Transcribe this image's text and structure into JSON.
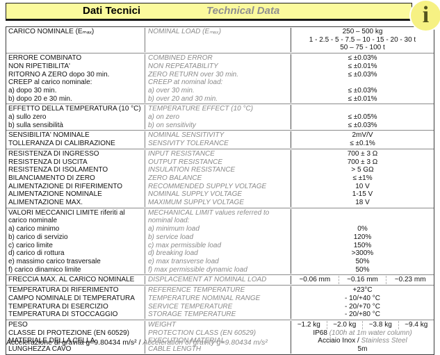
{
  "header": {
    "title_it": "Dati Tecnici",
    "title_en": "Technical Data"
  },
  "info_icon": {
    "glyph": "i"
  },
  "colors": {
    "banner_yellow": "#fbfa9d",
    "icon_yellow": "#f6f183",
    "icon_glyph": "#54541e",
    "gray_italic_text": "#8a8a8a",
    "border_dark": "#3a3a3a",
    "border_light": "#8a8a8a"
  },
  "table": {
    "groups": [
      {
        "rows": [
          {
            "it": "CARICO NOMINALE (Eₘₐₓ)",
            "en": "NOMINAL LOAD (Eₘₐₓ)",
            "val_lines": [
              "250 – 500 kg",
              "1 - 2.5 - 5 - 7.5 – 10 - 15 - 20 - 30 t",
              "50 – 75 - 100 t"
            ]
          }
        ]
      },
      {
        "rows": [
          {
            "it": "ERRORE COMBINATO",
            "en": "COMBINED ERROR",
            "val": "≤ ±0.03%"
          },
          {
            "it": "NON RIPETIBILITA'",
            "en": "NON REPEATABILITY",
            "val": "≤ ±0.01%"
          },
          {
            "it": "RITORNO A ZERO dopo 30 min.",
            "en": "ZERO RETURN over 30 min.",
            "val": "≤ ±0.03%"
          },
          {
            "it": "CREEP al carico nominale:",
            "en": "CREEP at nominal load:",
            "val": ""
          },
          {
            "it": "a) dopo 30 min.",
            "en": "a) over 30 min.",
            "val": "≤ ±0.03%"
          },
          {
            "it": "b) dopo 20 e 30 min.",
            "en": "b) over 20 and 30 min.",
            "val": "≤ ±0.01%"
          }
        ]
      },
      {
        "rows": [
          {
            "it": "EFFETTO DELLA TEMPERATURA (10 °C)",
            "en": "TEMPERATURE EFFECT (10 °C)",
            "val": ""
          },
          {
            "it": "a) sullo zero",
            "en": "a) on zero",
            "val": "≤ ±0.05%"
          },
          {
            "it": "b) sulla sensibilità",
            "en": "b) on sensitivity",
            "val": "≤ ±0.03%"
          }
        ]
      },
      {
        "rows": [
          {
            "it": "SENSIBILITA' NOMINALE",
            "en": "NOMINAL SENSITIVITY",
            "val": "2mV/V"
          },
          {
            "it": "TOLLERANZA DI CALIBRAZIONE",
            "en": "SENSIVITY TOLERANCE",
            "val": "≤ ±0.1%"
          }
        ]
      },
      {
        "rows": [
          {
            "it": "RESISTENZA DI INGRESSO",
            "en": "INPUT RESISTANCE",
            "val": "700 ± 3 Ω"
          },
          {
            "it": "RESISTENZA DI USCITA",
            "en": "OUTPUT RESISTANCE",
            "val": "700 ± 3 Ω"
          },
          {
            "it": "RESISTENZA DI ISOLAMENTO",
            "en": "INSULATION RESISTANCE",
            "val": "> 5 GΩ"
          },
          {
            "it": "BILANCIAMENTO DI ZERO",
            "en": "ZERO BALANCE",
            "val": "≤ ±1%"
          },
          {
            "it": "ALIMENTAZIONE DI RIFERIMENTO",
            "en": "RECOMMENDED SUPPLY VOLTAGE",
            "val": "10 V"
          },
          {
            "it": "ALIMENTAZIONE NOMINALE",
            "en": "NOMINAL SUPPLY VOLTAGE",
            "val": "1-15 V"
          },
          {
            "it": "ALIMENTAZIONE MAX.",
            "en": "MAXIMUM SUPPLY VOLTAGE",
            "val": "18 V"
          }
        ]
      },
      {
        "rows": [
          {
            "it": "VALORI MECCANICI LIMITE riferiti al",
            "en": "MECHANICAL LIMIT values referred to",
            "val": ""
          },
          {
            "it": "carico nominale",
            "en": "nominal load:",
            "val": ""
          },
          {
            "it": "a) carico minimo",
            "en": "a) minimum load",
            "val": "0%"
          },
          {
            "it": "b) carico di servizio",
            "en": "b) service load",
            "val": "120%"
          },
          {
            "it": "c) carico limite",
            "en": "c) max permissible load",
            "val": "150%"
          },
          {
            "it": "d) carico di rottura",
            "en": "d) breaking load",
            "val": ">300%"
          },
          {
            "it": "e) massimo carico trasversale",
            "en": "e) max transverse load",
            "val": "50%"
          },
          {
            "it": "f) carico dinamico  limite",
            "en": "f) max permissible dynamic load",
            "val": "50%"
          }
        ]
      },
      {
        "rows": [
          {
            "it": "FRECCIA MAX. AL CARICO NOMINALE",
            "en": "DISPLACEMENT AT NOMINAL LOAD",
            "vals": [
              "~0.06 mm",
              "~0.16 mm",
              "~0.23 mm"
            ]
          }
        ]
      },
      {
        "rows": [
          {
            "it": "TEMPERATURA DI RIFERIMENTO",
            "en": "REFERENCE TEMPERATURE",
            "val": "+23°C"
          },
          {
            "it": "CAMPO NOMINALE DI TEMPERATURA",
            "en": "TEMPERATURE NOMINAL RANGE",
            "val": "- 10/+40 °C"
          },
          {
            "it": "TEMPERATURA DI ESERCIZIO",
            "en": "SERVICE TEMPERATURE",
            "val": "- 20/+70 °C"
          },
          {
            "it": "TEMPERATURA DI STOCCAGGIO",
            "en": "STORAGE TEMPERATURE",
            "val": "- 20/+80 °C"
          }
        ]
      },
      {
        "rows": [
          {
            "it": "PESO",
            "en": "WEIGHT",
            "vals": [
              "~1.2 kg",
              "~2.0 kg",
              "~3.8 kg",
              "~9.4 kg"
            ]
          },
          {
            "it": "CLASSE DI PROTEZIONE (EN 60529)",
            "en": "PROTECTION CLASS (EN 60529)",
            "val": "IP68 ",
            "val_note": "(100h at 1m  water column)"
          },
          {
            "it": "MATERIALE DELLA CELLA",
            "en": "EXECUTION MATERIAL",
            "val": "Acciaio Inox / ",
            "val_note": "Stainless Steel"
          },
          {
            "it": "LUNGHEZZA CAVO",
            "en": "CABLE LENGTH",
            "val": "5m"
          }
        ]
      }
    ]
  },
  "footer": {
    "it": "Accelerazione di gravità g=9.80434 m/s²  /  ",
    "en": "Acceleration of gravity g=9.80434 m/s²"
  }
}
